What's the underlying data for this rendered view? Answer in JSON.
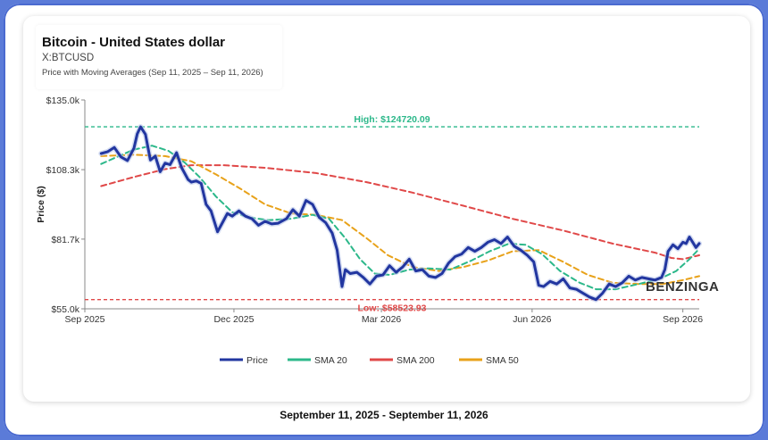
{
  "chart_data": {
    "type": "line",
    "title": "Bitcoin - United States dollar",
    "subtitle": "X:BTCUSD",
    "description": "Price with Moving Averages (Sep 11, 2025 – Sep 11, 2026)",
    "footer": "September 11, 2025 - September 11, 2026",
    "ylabel": "Price ($)",
    "ylim": [
      55000,
      135000
    ],
    "yticks": [
      55000,
      81700,
      108300,
      135000
    ],
    "ytick_labels": [
      "$55.0k",
      "$81.7k",
      "$108.3k",
      "$135.0k"
    ],
    "xlim": [
      "2025-09-01",
      "2026-09-11"
    ],
    "xticks": [
      "2025-09-01",
      "2025-12-01",
      "2026-03-01",
      "2026-06-01",
      "2026-09-01"
    ],
    "xtick_labels": [
      "Sep 2025",
      "Dec 2025",
      "Mar 2026",
      "Jun 2026",
      "Sep 2026"
    ],
    "legend_position": "bottom",
    "watermark": "BENZINGA",
    "high": {
      "value": 124720.09,
      "label": "High: $124720.09",
      "color": "#2cb88a"
    },
    "low": {
      "value": 58523.93,
      "label": "Low: $58523.93",
      "color": "#e04848"
    },
    "series": [
      {
        "name": "Price",
        "color": "#2236a0",
        "points": [
          [
            "2025-09-11",
            114500
          ],
          [
            "2025-09-15",
            115200
          ],
          [
            "2025-09-19",
            116800
          ],
          [
            "2025-09-23",
            113200
          ],
          [
            "2025-09-27",
            111800
          ],
          [
            "2025-10-01",
            116500
          ],
          [
            "2025-10-03",
            122000
          ],
          [
            "2025-10-05",
            124720
          ],
          [
            "2025-10-08",
            121800
          ],
          [
            "2025-10-11",
            112000
          ],
          [
            "2025-10-14",
            113500
          ],
          [
            "2025-10-17",
            107500
          ],
          [
            "2025-10-20",
            110800
          ],
          [
            "2025-10-23",
            110200
          ],
          [
            "2025-10-27",
            114800
          ],
          [
            "2025-10-30",
            109200
          ],
          [
            "2025-11-03",
            104500
          ],
          [
            "2025-11-05",
            103500
          ],
          [
            "2025-11-08",
            104000
          ],
          [
            "2025-11-11",
            103000
          ],
          [
            "2025-11-14",
            95000
          ],
          [
            "2025-11-17",
            92500
          ],
          [
            "2025-11-21",
            84500
          ],
          [
            "2025-11-24",
            88000
          ],
          [
            "2025-11-27",
            91500
          ],
          [
            "2025-11-30",
            90500
          ],
          [
            "2025-12-04",
            92500
          ],
          [
            "2025-12-08",
            90500
          ],
          [
            "2025-12-12",
            89500
          ],
          [
            "2025-12-16",
            87000
          ],
          [
            "2025-12-20",
            88500
          ],
          [
            "2025-12-24",
            87500
          ],
          [
            "2025-12-28",
            87800
          ],
          [
            "2026-01-02",
            89500
          ],
          [
            "2026-01-06",
            93000
          ],
          [
            "2026-01-10",
            90500
          ],
          [
            "2026-01-14",
            96500
          ],
          [
            "2026-01-18",
            95000
          ],
          [
            "2026-01-22",
            90000
          ],
          [
            "2026-01-26",
            88000
          ],
          [
            "2026-01-30",
            84000
          ],
          [
            "2026-02-02",
            77500
          ],
          [
            "2026-02-05",
            63500
          ],
          [
            "2026-02-07",
            70000
          ],
          [
            "2026-02-10",
            68500
          ],
          [
            "2026-02-14",
            69000
          ],
          [
            "2026-02-18",
            67000
          ],
          [
            "2026-02-22",
            64500
          ],
          [
            "2026-02-26",
            67500
          ],
          [
            "2026-03-02",
            68000
          ],
          [
            "2026-03-06",
            71500
          ],
          [
            "2026-03-10",
            69000
          ],
          [
            "2026-03-14",
            71000
          ],
          [
            "2026-03-18",
            74000
          ],
          [
            "2026-03-22",
            69500
          ],
          [
            "2026-03-26",
            70000
          ],
          [
            "2026-03-30",
            67500
          ],
          [
            "2026-04-03",
            67000
          ],
          [
            "2026-04-07",
            68500
          ],
          [
            "2026-04-11",
            72500
          ],
          [
            "2026-04-15",
            75000
          ],
          [
            "2026-04-19",
            76000
          ],
          [
            "2026-04-23",
            78500
          ],
          [
            "2026-04-27",
            77000
          ],
          [
            "2026-05-01",
            78500
          ],
          [
            "2026-05-05",
            80500
          ],
          [
            "2026-05-09",
            81500
          ],
          [
            "2026-05-13",
            80000
          ],
          [
            "2026-05-17",
            82500
          ],
          [
            "2026-05-21",
            79000
          ],
          [
            "2026-05-25",
            77500
          ],
          [
            "2026-05-29",
            75500
          ],
          [
            "2026-06-02",
            73000
          ],
          [
            "2026-06-05",
            64000
          ],
          [
            "2026-06-08",
            63500
          ],
          [
            "2026-06-12",
            65500
          ],
          [
            "2026-06-16",
            64500
          ],
          [
            "2026-06-20",
            66500
          ],
          [
            "2026-06-24",
            63000
          ],
          [
            "2026-06-28",
            62500
          ],
          [
            "2026-07-02",
            61000
          ],
          [
            "2026-07-06",
            59500
          ],
          [
            "2026-07-10",
            58524
          ],
          [
            "2026-07-14",
            61000
          ],
          [
            "2026-07-18",
            64500
          ],
          [
            "2026-07-22",
            63500
          ],
          [
            "2026-07-26",
            65000
          ],
          [
            "2026-07-30",
            67500
          ],
          [
            "2026-08-03",
            66000
          ],
          [
            "2026-08-07",
            67000
          ],
          [
            "2026-08-11",
            66500
          ],
          [
            "2026-08-15",
            66000
          ],
          [
            "2026-08-19",
            67000
          ],
          [
            "2026-08-21",
            70000
          ],
          [
            "2026-08-23",
            77000
          ],
          [
            "2026-08-26",
            79500
          ],
          [
            "2026-08-29",
            78000
          ],
          [
            "2026-09-01",
            80500
          ],
          [
            "2026-09-03",
            80000
          ],
          [
            "2026-09-05",
            82500
          ],
          [
            "2026-09-07",
            80500
          ],
          [
            "2026-09-09",
            78500
          ],
          [
            "2026-09-11",
            80000
          ]
        ]
      },
      {
        "name": "SMA 20",
        "color": "#2cb88a",
        "points": [
          [
            "2025-09-11",
            110500
          ],
          [
            "2025-09-20",
            113000
          ],
          [
            "2025-10-01",
            116000
          ],
          [
            "2025-10-12",
            117500
          ],
          [
            "2025-10-22",
            115500
          ],
          [
            "2025-11-01",
            111000
          ],
          [
            "2025-11-10",
            105500
          ],
          [
            "2025-11-20",
            98000
          ],
          [
            "2025-11-30",
            92000
          ],
          [
            "2025-12-10",
            90000
          ],
          [
            "2025-12-22",
            89000
          ],
          [
            "2026-01-05",
            89500
          ],
          [
            "2026-01-18",
            91000
          ],
          [
            "2026-01-28",
            89500
          ],
          [
            "2026-02-07",
            82000
          ],
          [
            "2026-02-16",
            74000
          ],
          [
            "2026-02-25",
            68500
          ],
          [
            "2026-03-06",
            68000
          ],
          [
            "2026-03-18",
            70000
          ],
          [
            "2026-03-30",
            70500
          ],
          [
            "2026-04-12",
            70000
          ],
          [
            "2026-04-25",
            73500
          ],
          [
            "2026-05-06",
            77000
          ],
          [
            "2026-05-18",
            80000
          ],
          [
            "2026-05-28",
            79500
          ],
          [
            "2026-06-07",
            76000
          ],
          [
            "2026-06-18",
            69500
          ],
          [
            "2026-06-30",
            65000
          ],
          [
            "2026-07-10",
            62500
          ],
          [
            "2026-07-22",
            62500
          ],
          [
            "2026-08-05",
            64500
          ],
          [
            "2026-08-18",
            66500
          ],
          [
            "2026-08-28",
            69500
          ],
          [
            "2026-09-05",
            74000
          ],
          [
            "2026-09-11",
            78000
          ]
        ]
      },
      {
        "name": "SMA 200",
        "color": "#e04848",
        "points": [
          [
            "2025-09-11",
            102000
          ],
          [
            "2025-10-01",
            105500
          ],
          [
            "2025-10-20",
            108500
          ],
          [
            "2025-11-05",
            110000
          ],
          [
            "2025-11-25",
            110000
          ],
          [
            "2025-12-20",
            109000
          ],
          [
            "2026-01-20",
            107000
          ],
          [
            "2026-02-20",
            103500
          ],
          [
            "2026-03-20",
            99500
          ],
          [
            "2026-04-20",
            94500
          ],
          [
            "2026-05-20",
            89500
          ],
          [
            "2026-06-20",
            85000
          ],
          [
            "2026-07-20",
            80000
          ],
          [
            "2026-08-15",
            76500
          ],
          [
            "2026-08-25",
            74500
          ],
          [
            "2026-09-01",
            74000
          ],
          [
            "2026-09-11",
            75500
          ]
        ]
      },
      {
        "name": "SMA 50",
        "color": "#e8a21a",
        "points": [
          [
            "2025-09-11",
            113500
          ],
          [
            "2025-10-01",
            114000
          ],
          [
            "2025-10-20",
            113500
          ],
          [
            "2025-11-05",
            111500
          ],
          [
            "2025-11-20",
            106500
          ],
          [
            "2025-12-05",
            101000
          ],
          [
            "2025-12-20",
            95000
          ],
          [
            "2026-01-05",
            91500
          ],
          [
            "2026-01-20",
            91000
          ],
          [
            "2026-02-05",
            89000
          ],
          [
            "2026-02-20",
            82000
          ],
          [
            "2026-03-05",
            75500
          ],
          [
            "2026-03-20",
            71000
          ],
          [
            "2026-04-05",
            69500
          ],
          [
            "2026-04-20",
            71000
          ],
          [
            "2026-05-05",
            73500
          ],
          [
            "2026-05-20",
            77000
          ],
          [
            "2026-06-05",
            77500
          ],
          [
            "2026-06-20",
            73000
          ],
          [
            "2026-07-05",
            68000
          ],
          [
            "2026-07-20",
            65000
          ],
          [
            "2026-08-05",
            64500
          ],
          [
            "2026-08-20",
            64500
          ],
          [
            "2026-09-01",
            66000
          ],
          [
            "2026-09-11",
            67500
          ]
        ]
      }
    ]
  }
}
